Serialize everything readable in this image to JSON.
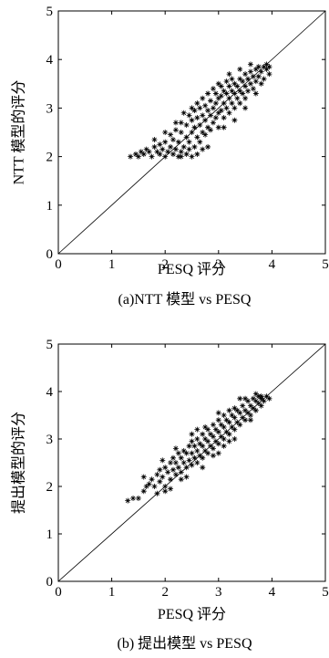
{
  "chart_data": [
    {
      "type": "scatter",
      "xlabel": "PESQ 评分",
      "ylabel": "NTT 模型的评分",
      "caption": "(a)NTT 模型 vs PESQ",
      "xlim": [
        0,
        5
      ],
      "ylim": [
        0,
        5
      ],
      "xticks": [
        "0",
        "1",
        "2",
        "3",
        "4",
        "5"
      ],
      "yticks": [
        "0",
        "1",
        "2",
        "3",
        "4",
        "5"
      ],
      "marker": "*",
      "reference_line": "y = x",
      "grid": false,
      "points": [
        [
          1.35,
          2.0
        ],
        [
          1.45,
          2.05
        ],
        [
          1.5,
          2.0
        ],
        [
          1.55,
          2.1
        ],
        [
          1.6,
          2.05
        ],
        [
          1.65,
          2.15
        ],
        [
          1.7,
          2.1
        ],
        [
          1.75,
          2.0
        ],
        [
          1.8,
          2.2
        ],
        [
          1.85,
          2.1
        ],
        [
          1.9,
          2.05
        ],
        [
          1.9,
          2.25
        ],
        [
          1.95,
          2.15
        ],
        [
          2.0,
          2.0
        ],
        [
          2.0,
          2.3
        ],
        [
          2.05,
          2.1
        ],
        [
          2.1,
          2.2
        ],
        [
          2.1,
          2.45
        ],
        [
          2.15,
          2.05
        ],
        [
          2.15,
          2.35
        ],
        [
          2.2,
          2.15
        ],
        [
          2.2,
          2.55
        ],
        [
          2.25,
          2.0
        ],
        [
          2.25,
          2.3
        ],
        [
          2.3,
          2.1
        ],
        [
          2.3,
          2.5
        ],
        [
          2.3,
          2.7
        ],
        [
          2.35,
          2.2
        ],
        [
          2.35,
          2.9
        ],
        [
          2.4,
          2.05
        ],
        [
          2.4,
          2.4
        ],
        [
          2.4,
          2.65
        ],
        [
          2.45,
          2.3
        ],
        [
          2.45,
          2.85
        ],
        [
          2.5,
          2.0
        ],
        [
          2.5,
          2.5
        ],
        [
          2.5,
          2.75
        ],
        [
          2.5,
          3.0
        ],
        [
          2.55,
          2.2
        ],
        [
          2.55,
          2.6
        ],
        [
          2.55,
          2.95
        ],
        [
          2.6,
          2.4
        ],
        [
          2.6,
          2.8
        ],
        [
          2.6,
          3.1
        ],
        [
          2.65,
          2.3
        ],
        [
          2.65,
          2.65
        ],
        [
          2.65,
          3.0
        ],
        [
          2.7,
          2.5
        ],
        [
          2.7,
          2.85
        ],
        [
          2.7,
          3.2
        ],
        [
          2.75,
          2.45
        ],
        [
          2.75,
          2.75
        ],
        [
          2.75,
          3.05
        ],
        [
          2.8,
          2.6
        ],
        [
          2.8,
          2.95
        ],
        [
          2.8,
          3.3
        ],
        [
          2.85,
          2.55
        ],
        [
          2.85,
          2.85
        ],
        [
          2.85,
          3.15
        ],
        [
          2.9,
          2.7
        ],
        [
          2.9,
          3.0
        ],
        [
          2.9,
          3.4
        ],
        [
          2.95,
          2.8
        ],
        [
          2.95,
          3.1
        ],
        [
          2.95,
          3.3
        ],
        [
          3.0,
          2.6
        ],
        [
          3.0,
          2.9
        ],
        [
          3.0,
          3.2
        ],
        [
          3.0,
          3.5
        ],
        [
          3.05,
          2.95
        ],
        [
          3.05,
          3.25
        ],
        [
          3.05,
          3.45
        ],
        [
          3.1,
          2.8
        ],
        [
          3.1,
          3.1
        ],
        [
          3.1,
          3.35
        ],
        [
          3.15,
          3.0
        ],
        [
          3.15,
          3.3
        ],
        [
          3.15,
          3.55
        ],
        [
          3.2,
          2.9
        ],
        [
          3.2,
          3.2
        ],
        [
          3.2,
          3.45
        ],
        [
          3.25,
          3.1
        ],
        [
          3.25,
          3.35
        ],
        [
          3.25,
          3.6
        ],
        [
          3.3,
          3.0
        ],
        [
          3.3,
          3.3
        ],
        [
          3.3,
          3.5
        ],
        [
          3.35,
          3.2
        ],
        [
          3.35,
          3.45
        ],
        [
          3.4,
          3.1
        ],
        [
          3.4,
          3.35
        ],
        [
          3.4,
          3.6
        ],
        [
          3.45,
          3.3
        ],
        [
          3.45,
          3.55
        ],
        [
          3.5,
          3.2
        ],
        [
          3.5,
          3.45
        ],
        [
          3.5,
          3.7
        ],
        [
          3.55,
          3.35
        ],
        [
          3.55,
          3.6
        ],
        [
          3.6,
          3.5
        ],
        [
          3.6,
          3.75
        ],
        [
          3.65,
          3.4
        ],
        [
          3.65,
          3.65
        ],
        [
          3.7,
          3.55
        ],
        [
          3.7,
          3.8
        ],
        [
          3.75,
          3.65
        ],
        [
          3.75,
          3.85
        ],
        [
          3.8,
          3.5
        ],
        [
          3.8,
          3.75
        ],
        [
          3.85,
          3.85
        ],
        [
          3.85,
          3.6
        ],
        [
          3.9,
          3.8
        ],
        [
          3.9,
          3.9
        ],
        [
          3.95,
          3.7
        ],
        [
          3.95,
          3.85
        ],
        [
          2.6,
          2.05
        ],
        [
          2.8,
          2.2
        ],
        [
          3.1,
          2.6
        ],
        [
          3.3,
          2.75
        ],
        [
          2.0,
          2.5
        ],
        [
          2.3,
          2.0
        ],
        [
          2.7,
          2.15
        ],
        [
          2.45,
          2.15
        ],
        [
          3.5,
          3.0
        ],
        [
          3.7,
          3.3
        ],
        [
          2.2,
          2.7
        ],
        [
          1.8,
          2.35
        ],
        [
          3.2,
          3.7
        ],
        [
          3.4,
          3.8
        ],
        [
          3.6,
          3.9
        ]
      ]
    },
    {
      "type": "scatter",
      "xlabel": "PESQ 评分",
      "ylabel": "提出模型的评分",
      "caption": "(b) 提出模型 vs PESQ",
      "xlim": [
        0,
        5
      ],
      "ylim": [
        0,
        5
      ],
      "xticks": [
        "0",
        "1",
        "2",
        "3",
        "4",
        "5"
      ],
      "yticks": [
        "0",
        "1",
        "2",
        "3",
        "4",
        "5"
      ],
      "marker": "*",
      "reference_line": "y = x",
      "grid": false,
      "points": [
        [
          1.3,
          1.7
        ],
        [
          1.4,
          1.75
        ],
        [
          1.5,
          1.75
        ],
        [
          1.6,
          1.9
        ],
        [
          1.65,
          2.0
        ],
        [
          1.7,
          2.05
        ],
        [
          1.75,
          2.15
        ],
        [
          1.8,
          2.0
        ],
        [
          1.85,
          2.25
        ],
        [
          1.9,
          2.1
        ],
        [
          1.9,
          2.35
        ],
        [
          1.95,
          2.2
        ],
        [
          2.0,
          2.0
        ],
        [
          2.0,
          2.4
        ],
        [
          2.05,
          2.3
        ],
        [
          2.1,
          2.15
        ],
        [
          2.1,
          2.5
        ],
        [
          2.15,
          2.35
        ],
        [
          2.15,
          2.6
        ],
        [
          2.2,
          2.25
        ],
        [
          2.2,
          2.5
        ],
        [
          2.25,
          2.4
        ],
        [
          2.25,
          2.7
        ],
        [
          2.3,
          2.3
        ],
        [
          2.3,
          2.6
        ],
        [
          2.35,
          2.5
        ],
        [
          2.35,
          2.75
        ],
        [
          2.4,
          2.4
        ],
        [
          2.4,
          2.7
        ],
        [
          2.45,
          2.55
        ],
        [
          2.45,
          2.85
        ],
        [
          2.5,
          2.45
        ],
        [
          2.5,
          2.7
        ],
        [
          2.5,
          2.95
        ],
        [
          2.55,
          2.6
        ],
        [
          2.55,
          2.85
        ],
        [
          2.6,
          2.5
        ],
        [
          2.6,
          2.75
        ],
        [
          2.6,
          3.0
        ],
        [
          2.65,
          2.65
        ],
        [
          2.65,
          2.9
        ],
        [
          2.7,
          2.6
        ],
        [
          2.7,
          2.85
        ],
        [
          2.7,
          3.1
        ],
        [
          2.75,
          2.75
        ],
        [
          2.75,
          3.0
        ],
        [
          2.8,
          2.7
        ],
        [
          2.8,
          2.95
        ],
        [
          2.8,
          3.2
        ],
        [
          2.85,
          2.85
        ],
        [
          2.85,
          3.1
        ],
        [
          2.9,
          2.8
        ],
        [
          2.9,
          3.05
        ],
        [
          2.9,
          3.3
        ],
        [
          2.95,
          2.95
        ],
        [
          2.95,
          3.2
        ],
        [
          3.0,
          2.9
        ],
        [
          3.0,
          3.15
        ],
        [
          3.0,
          3.4
        ],
        [
          3.05,
          3.05
        ],
        [
          3.05,
          3.3
        ],
        [
          3.1,
          3.0
        ],
        [
          3.1,
          3.25
        ],
        [
          3.1,
          3.5
        ],
        [
          3.15,
          3.15
        ],
        [
          3.15,
          3.4
        ],
        [
          3.2,
          3.1
        ],
        [
          3.2,
          3.35
        ],
        [
          3.2,
          3.6
        ],
        [
          3.25,
          3.25
        ],
        [
          3.25,
          3.5
        ],
        [
          3.3,
          3.2
        ],
        [
          3.3,
          3.45
        ],
        [
          3.3,
          3.65
        ],
        [
          3.35,
          3.35
        ],
        [
          3.35,
          3.6
        ],
        [
          3.4,
          3.3
        ],
        [
          3.4,
          3.55
        ],
        [
          3.45,
          3.45
        ],
        [
          3.45,
          3.7
        ],
        [
          3.5,
          3.4
        ],
        [
          3.5,
          3.6
        ],
        [
          3.55,
          3.55
        ],
        [
          3.55,
          3.8
        ],
        [
          3.6,
          3.5
        ],
        [
          3.6,
          3.7
        ],
        [
          3.65,
          3.65
        ],
        [
          3.65,
          3.85
        ],
        [
          3.7,
          3.6
        ],
        [
          3.7,
          3.8
        ],
        [
          3.75,
          3.75
        ],
        [
          3.75,
          3.9
        ],
        [
          3.8,
          3.7
        ],
        [
          3.8,
          3.85
        ],
        [
          3.85,
          3.8
        ],
        [
          3.9,
          3.9
        ],
        [
          3.95,
          3.85
        ],
        [
          2.0,
          1.9
        ],
        [
          2.4,
          2.2
        ],
        [
          2.7,
          2.4
        ],
        [
          3.0,
          2.7
        ],
        [
          3.3,
          3.0
        ],
        [
          1.6,
          2.2
        ],
        [
          2.2,
          2.8
        ],
        [
          2.6,
          3.2
        ],
        [
          3.4,
          3.85
        ],
        [
          3.0,
          3.55
        ],
        [
          2.3,
          2.15
        ],
        [
          2.9,
          2.65
        ],
        [
          3.2,
          2.95
        ],
        [
          1.95,
          2.55
        ],
        [
          2.5,
          3.1
        ],
        [
          3.6,
          3.4
        ],
        [
          3.7,
          3.95
        ],
        [
          3.8,
          3.9
        ],
        [
          2.1,
          1.95
        ],
        [
          1.85,
          1.85
        ],
        [
          3.5,
          3.85
        ],
        [
          2.75,
          3.25
        ],
        [
          3.1,
          2.85
        ]
      ]
    }
  ]
}
